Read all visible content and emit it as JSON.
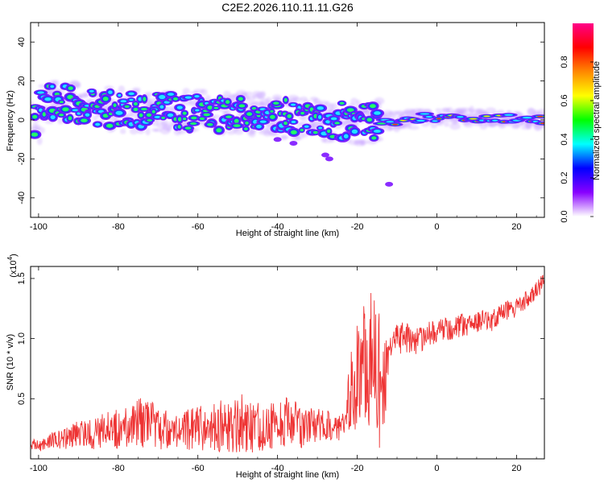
{
  "chart_data": [
    {
      "type": "heatmap",
      "title": "C2E2.2026.110.11.11.G26",
      "xlabel": "Height of straight line (km)",
      "ylabel": "Frequency (Hz)",
      "xlim": [
        -102,
        27
      ],
      "ylim": [
        -50,
        50
      ],
      "xticks": [
        -100,
        -80,
        -60,
        -40,
        -20,
        0,
        20
      ],
      "yticks": [
        -40,
        -20,
        0,
        20,
        40
      ],
      "colorbar": {
        "label": "Normalized spectral amplitude",
        "range": [
          0,
          1
        ],
        "ticks": [
          "0.0",
          "0.2",
          "0.4",
          "0.6",
          "0.8"
        ],
        "colors": [
          "#ffffff",
          "#8800ff",
          "#0000ff",
          "#00ffff",
          "#00ff00",
          "#ffff00",
          "#ff8800",
          "#ff0000",
          "#ff0088"
        ]
      },
      "ridge": {
        "description_points_x_km": [
          -100,
          -80,
          -60,
          -40,
          -20,
          -10,
          0,
          10,
          25
        ],
        "center_frequency_hz": [
          10,
          5,
          4,
          2,
          -1,
          0,
          1,
          1,
          0
        ]
      }
    },
    {
      "type": "line",
      "xlabel": "Height of straight line (km)",
      "ylabel": "SNR (10 * v/v)",
      "multiplier": "(x10",
      "multiplier_exp": "4",
      "multiplier_close": ")",
      "xlim": [
        -102,
        27
      ],
      "ylim": [
        0,
        1.6
      ],
      "xticks": [
        -100,
        -80,
        -60,
        -40,
        -20,
        0,
        20
      ],
      "yticks": [
        "0.5",
        "1.0",
        "1.5"
      ],
      "series": [
        {
          "name": "SNR",
          "color": "#ee3333",
          "x": [
            -102,
            -98,
            -94,
            -90,
            -86,
            -82,
            -78,
            -74,
            -70,
            -66,
            -62,
            -58,
            -54,
            -50,
            -46,
            -42,
            -38,
            -34,
            -30,
            -26,
            -23,
            -22,
            -20,
            -18,
            -16,
            -14,
            -13,
            -12,
            -10,
            -8,
            -6,
            -4,
            -2,
            0,
            2,
            4,
            6,
            8,
            10,
            12,
            14,
            16,
            18,
            20,
            22,
            24,
            26,
            27
          ],
          "values": [
            0.1,
            0.14,
            0.16,
            0.2,
            0.22,
            0.24,
            0.26,
            0.3,
            0.26,
            0.22,
            0.24,
            0.26,
            0.28,
            0.3,
            0.27,
            0.28,
            0.3,
            0.27,
            0.26,
            0.26,
            0.28,
            0.5,
            0.7,
            0.85,
            0.8,
            0.6,
            0.7,
            0.95,
            1.02,
            1.0,
            0.98,
            1.0,
            1.03,
            1.06,
            1.08,
            1.06,
            1.12,
            1.1,
            1.14,
            1.16,
            1.15,
            1.2,
            1.24,
            1.26,
            1.3,
            1.38,
            1.44,
            1.48
          ],
          "noise_amplitude": [
            0.05,
            0.07,
            0.08,
            0.12,
            0.14,
            0.16,
            0.18,
            0.22,
            0.18,
            0.16,
            0.18,
            0.2,
            0.24,
            0.26,
            0.22,
            0.2,
            0.22,
            0.18,
            0.16,
            0.14,
            0.1,
            0.3,
            0.45,
            0.55,
            0.6,
            0.55,
            0.5,
            0.15,
            0.14,
            0.14,
            0.12,
            0.12,
            0.12,
            0.1,
            0.1,
            0.1,
            0.1,
            0.1,
            0.09,
            0.09,
            0.09,
            0.09,
            0.08,
            0.08,
            0.08,
            0.08,
            0.08,
            0.08
          ]
        }
      ]
    }
  ]
}
